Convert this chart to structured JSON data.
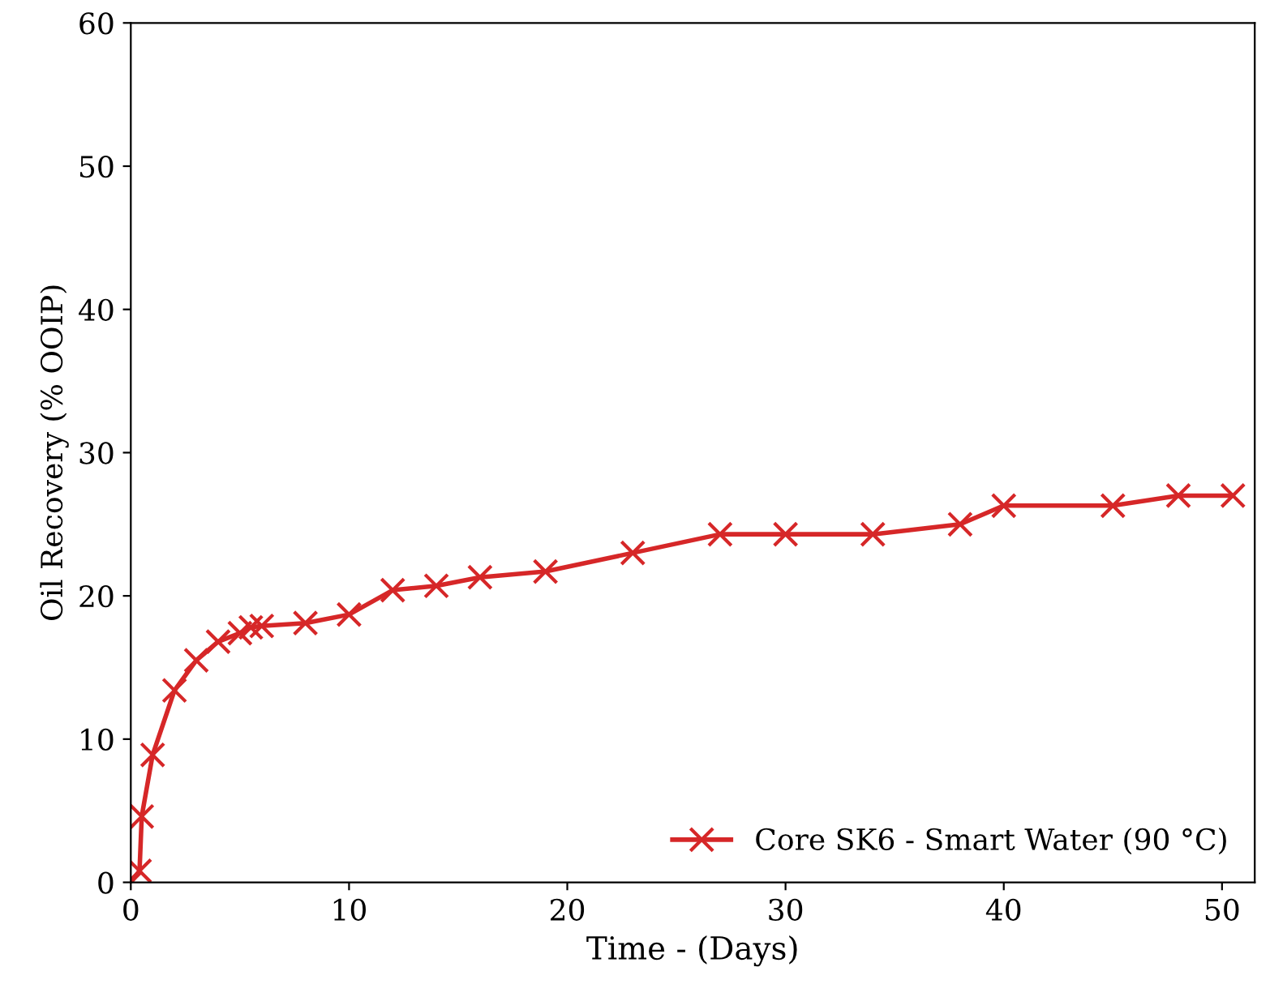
{
  "chart_data": {
    "type": "line",
    "xlabel": "Time - (Days)",
    "ylabel": "Oil Recovery (% OOIP)",
    "xlim": [
      0,
      51.5
    ],
    "ylim": [
      0,
      60
    ],
    "xticks": [
      0,
      10,
      20,
      30,
      40,
      50
    ],
    "yticks": [
      0,
      10,
      20,
      30,
      40,
      50,
      60
    ],
    "marker": "cross",
    "line_style": "solid",
    "legend": "bottom right",
    "grid": false,
    "series": [
      {
        "name": "Core SK6 - Smart Water (90 °C)",
        "color": "#d62728",
        "x": [
          0,
          0.4,
          0.5,
          1,
          2,
          3,
          4,
          5,
          5.5,
          6,
          8,
          10,
          12,
          14,
          16,
          19,
          23,
          27,
          30,
          34,
          38,
          40,
          45,
          48,
          50.5
        ],
        "values": [
          0,
          0.8,
          4.6,
          8.9,
          13.4,
          15.5,
          16.8,
          17.4,
          17.8,
          17.9,
          18.1,
          18.7,
          20.4,
          20.7,
          21.3,
          21.7,
          23.0,
          24.3,
          24.3,
          24.3,
          25.0,
          26.3,
          26.3,
          27.0,
          27.0
        ]
      }
    ]
  }
}
